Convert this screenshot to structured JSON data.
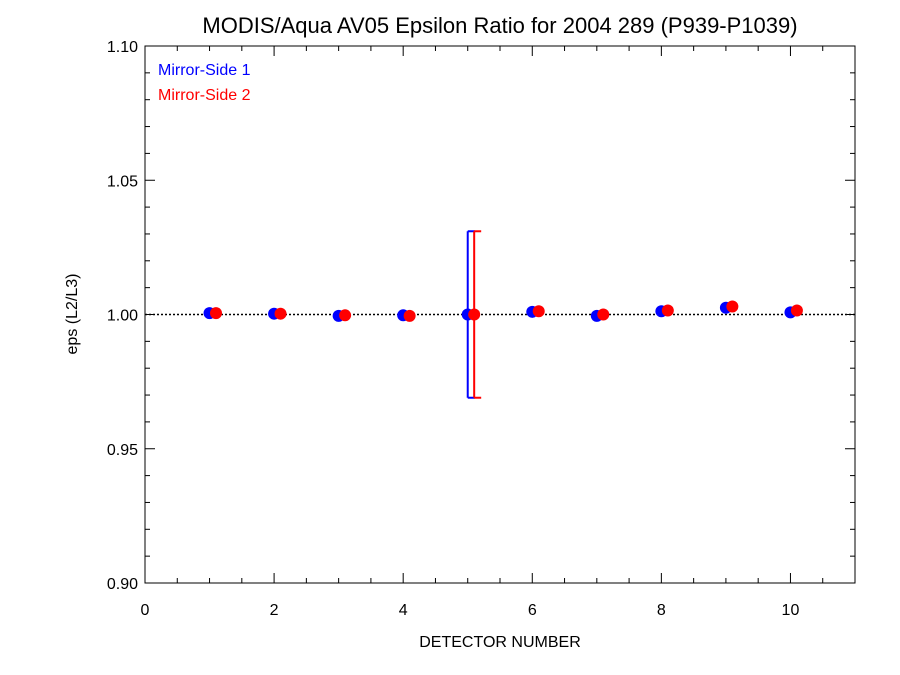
{
  "chart_data": {
    "type": "scatter",
    "title": "MODIS/Aqua AV05 Epsilon Ratio for 2004 289 (P939-P1039)",
    "xlabel": "DETECTOR NUMBER",
    "ylabel": "eps (L2/L3)",
    "xlim": [
      0,
      11
    ],
    "ylim": [
      0.9,
      1.1
    ],
    "x_ticks": [
      "0",
      "2",
      "4",
      "6",
      "8",
      "10"
    ],
    "y_ticks": [
      "0.90",
      "0.95",
      "1.00",
      "1.05",
      "1.10"
    ],
    "reference_line": 1.0,
    "legend_position": "top-left",
    "colors": {
      "ms1": "#0000ff",
      "ms2": "#ff0000"
    },
    "series": [
      {
        "name": "Mirror-Side 1",
        "x": [
          1,
          2,
          3,
          4,
          5,
          6,
          7,
          8,
          9,
          10
        ],
        "y": [
          1.0005,
          1.0003,
          0.9995,
          0.9997,
          1.0,
          1.001,
          0.9995,
          1.0012,
          1.0025,
          1.0008
        ],
        "error": [
          0,
          0,
          0,
          0,
          0.031,
          0,
          0,
          0,
          0,
          0
        ]
      },
      {
        "name": "Mirror-Side 2",
        "x": [
          1.1,
          2.1,
          3.1,
          4.1,
          5.1,
          6.1,
          7.1,
          8.1,
          9.1,
          10.1
        ],
        "y": [
          1.0005,
          1.0003,
          0.9997,
          0.9995,
          1.0,
          1.0012,
          1.0,
          1.0015,
          1.003,
          1.0015
        ],
        "error": [
          0,
          0,
          0,
          0,
          0.031,
          0,
          0,
          0,
          0,
          0
        ]
      }
    ]
  }
}
